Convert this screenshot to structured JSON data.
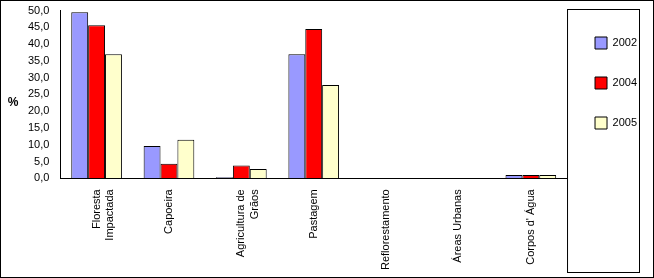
{
  "chart_data": {
    "type": "bar",
    "y_label": "%",
    "categories": [
      "Floresta Impactada",
      "Capoeira",
      "Agricultura de Grãos",
      "Pastagem",
      "Reflorestamento",
      "Áreas Urbanas",
      "Corpos d' Água"
    ],
    "series": [
      {
        "name": "2002",
        "color": "#9999ff",
        "values": [
          49.5,
          9.6,
          0.3,
          37.0,
          0,
          0,
          1.0
        ]
      },
      {
        "name": "2004",
        "color": "#ff0000",
        "values": [
          45.6,
          4.3,
          3.8,
          44.5,
          0,
          0,
          1.0
        ]
      },
      {
        "name": "2005",
        "color": "#ffffcc",
        "values": [
          37.0,
          11.5,
          2.8,
          27.8,
          0,
          0,
          1.0
        ]
      }
    ],
    "ylim": [
      0,
      50
    ],
    "yticks": [
      {
        "value": 0,
        "label": "0,0"
      },
      {
        "value": 5,
        "label": "5,0"
      },
      {
        "value": 10,
        "label": "10,0"
      },
      {
        "value": 15,
        "label": "15,0"
      },
      {
        "value": 20,
        "label": "20,0"
      },
      {
        "value": 25,
        "label": "25,0"
      },
      {
        "value": 30,
        "label": "30,0"
      },
      {
        "value": 35,
        "label": "35,0"
      },
      {
        "value": 40,
        "label": "40,0"
      },
      {
        "value": 45,
        "label": "45,0"
      },
      {
        "value": 50,
        "label": "50,0"
      }
    ],
    "grid": false,
    "legend": "right"
  }
}
